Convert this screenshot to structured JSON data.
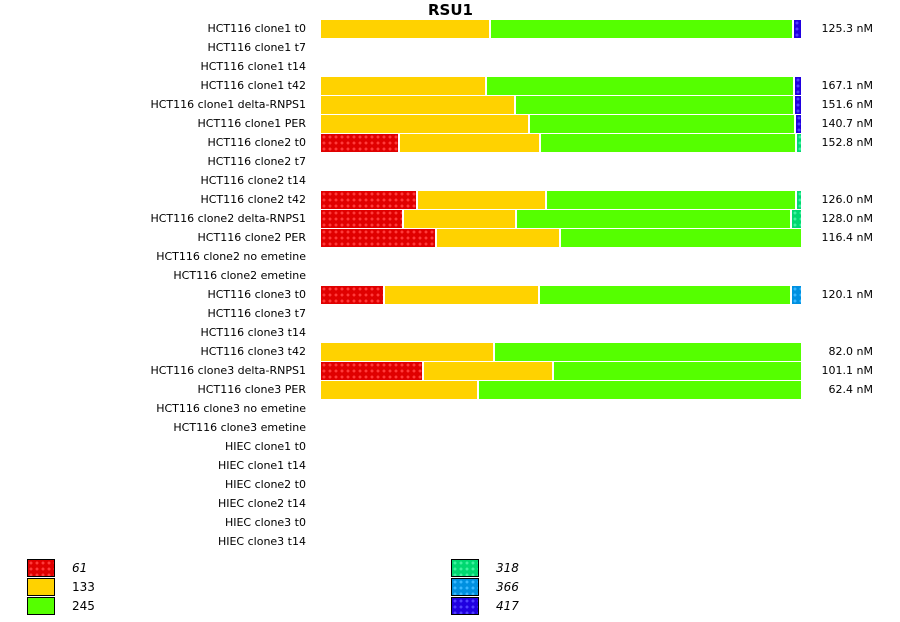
{
  "chart_data": {
    "type": "bar",
    "orientation": "horizontal-stacked-normalized",
    "title": "RSU1",
    "xlabel": "",
    "ylabel": "",
    "legend_position": "bottom",
    "series": [
      {
        "name": "61",
        "color": "#e00000",
        "pattern": "dotted",
        "italic": true
      },
      {
        "name": "133",
        "color": "#ffd200",
        "pattern": "solid",
        "italic": false
      },
      {
        "name": "245",
        "color": "#55ff00",
        "pattern": "solid",
        "italic": false
      },
      {
        "name": "318",
        "color": "#00d870",
        "pattern": "dotted",
        "italic": true
      },
      {
        "name": "366",
        "color": "#0090e0",
        "pattern": "dotted",
        "italic": true
      },
      {
        "name": "417",
        "color": "#2000e0",
        "pattern": "dotted",
        "italic": true
      }
    ],
    "rows": [
      {
        "label": "HCT116 clone1 t0",
        "concentration": "125.3 nM",
        "fractions": {
          "61": 0,
          "133": 35.4,
          "245": 63.1,
          "318": 0,
          "366": 0,
          "417": 1.5
        }
      },
      {
        "label": "HCT116 clone1 t7",
        "concentration": "",
        "fractions": null
      },
      {
        "label": "HCT116 clone1 t14",
        "concentration": "",
        "fractions": null
      },
      {
        "label": "HCT116 clone1 t42",
        "concentration": "167.1 nM",
        "fractions": {
          "61": 0,
          "133": 34.6,
          "245": 64.2,
          "318": 0,
          "366": 0,
          "417": 1.2
        }
      },
      {
        "label": "HCT116 clone1 delta-RNPS1",
        "concentration": "151.6 nM",
        "fractions": {
          "61": 0,
          "133": 40.6,
          "245": 58.1,
          "318": 0,
          "366": 0,
          "417": 1.3
        }
      },
      {
        "label": "HCT116 clone1 PER",
        "concentration": "140.7 nM",
        "fractions": {
          "61": 0,
          "133": 43.5,
          "245": 55.4,
          "318": 0,
          "366": 0,
          "417": 1.1
        }
      },
      {
        "label": "HCT116 clone2 t0",
        "concentration": "152.8 nM",
        "fractions": {
          "61": 16.5,
          "133": 29.4,
          "245": 53.3,
          "318": 0.8,
          "366": 0,
          "417": 0
        }
      },
      {
        "label": "HCT116 clone2 t7",
        "concentration": "",
        "fractions": null
      },
      {
        "label": "HCT116 clone2 t14",
        "concentration": "",
        "fractions": null
      },
      {
        "label": "HCT116 clone2 t42",
        "concentration": "126.0 nM",
        "fractions": {
          "61": 20.2,
          "133": 26.9,
          "245": 52.1,
          "318": 0.8,
          "366": 0,
          "417": 0
        }
      },
      {
        "label": "HCT116 clone2 delta-RNPS1",
        "concentration": "128.0 nM",
        "fractions": {
          "61": 17.3,
          "133": 23.5,
          "245": 57.3,
          "318": 1.9,
          "366": 0,
          "417": 0
        }
      },
      {
        "label": "HCT116 clone2 PER",
        "concentration": "116.4 nM",
        "fractions": {
          "61": 24.2,
          "133": 25.8,
          "245": 50.0,
          "318": 0,
          "366": 0,
          "417": 0
        }
      },
      {
        "label": "HCT116 clone2 no emetine",
        "concentration": "",
        "fractions": null
      },
      {
        "label": "HCT116 clone2 emetine",
        "concentration": "",
        "fractions": null
      },
      {
        "label": "HCT116 clone3 t0",
        "concentration": "120.1 nM",
        "fractions": {
          "61": 13.3,
          "133": 32.3,
          "245": 52.5,
          "318": 0,
          "366": 1.9,
          "417": 0
        }
      },
      {
        "label": "HCT116 clone3 t7",
        "concentration": "",
        "fractions": null
      },
      {
        "label": "HCT116 clone3 t14",
        "concentration": "",
        "fractions": null
      },
      {
        "label": "HCT116 clone3 t42",
        "concentration": "82.0 nM",
        "fractions": {
          "61": 0,
          "133": 36.2,
          "245": 63.8,
          "318": 0,
          "366": 0,
          "417": 0
        }
      },
      {
        "label": "HCT116 clone3 delta-RNPS1",
        "concentration": "101.1 nM",
        "fractions": {
          "61": 21.5,
          "133": 27.1,
          "245": 51.4,
          "318": 0,
          "366": 0,
          "417": 0
        }
      },
      {
        "label": "HCT116 clone3 PER",
        "concentration": "62.4 nM",
        "fractions": {
          "61": 0,
          "133": 32.9,
          "245": 67.1,
          "318": 0,
          "366": 0,
          "417": 0
        }
      },
      {
        "label": "HCT116 clone3 no emetine",
        "concentration": "",
        "fractions": null
      },
      {
        "label": "HCT116 clone3 emetine",
        "concentration": "",
        "fractions": null
      },
      {
        "label": "HIEC clone1 t0",
        "concentration": "",
        "fractions": null
      },
      {
        "label": "HIEC clone1 t14",
        "concentration": "",
        "fractions": null
      },
      {
        "label": "HIEC clone2 t0",
        "concentration": "",
        "fractions": null
      },
      {
        "label": "HIEC clone2 t14",
        "concentration": "",
        "fractions": null
      },
      {
        "label": "HIEC clone3 t0",
        "concentration": "",
        "fractions": null
      },
      {
        "label": "HIEC clone3 t14",
        "concentration": "",
        "fractions": null
      }
    ]
  }
}
